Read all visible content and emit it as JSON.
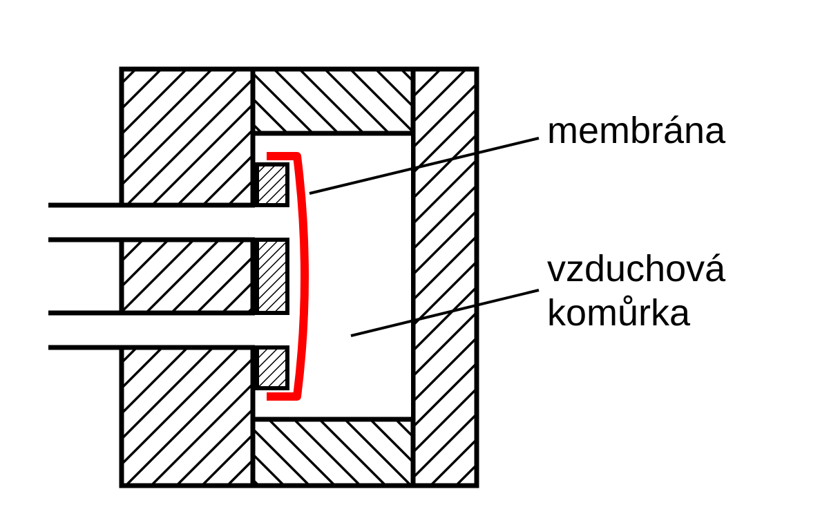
{
  "labels": {
    "membrane": "membrána",
    "chamber_line1": "vzduchová",
    "chamber_line2": "komůrka"
  },
  "colors": {
    "outline": "#000000",
    "membrane": "#ff0000",
    "background": "#ffffff"
  }
}
